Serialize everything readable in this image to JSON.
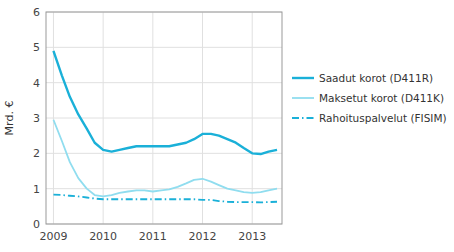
{
  "chart_data": {
    "type": "line",
    "ylabel": "Mrd. €",
    "x": [
      2009.0,
      2009.17,
      2009.33,
      2009.5,
      2009.67,
      2009.83,
      2010.0,
      2010.17,
      2010.33,
      2010.5,
      2010.67,
      2010.83,
      2011.0,
      2011.17,
      2011.33,
      2011.5,
      2011.67,
      2011.83,
      2012.0,
      2012.17,
      2012.33,
      2012.5,
      2012.67,
      2012.83,
      2013.0,
      2013.17,
      2013.33,
      2013.5
    ],
    "series": [
      {
        "name": "Saadut korot (D411R)",
        "color": "#1ab0d8",
        "line_style": "solid",
        "values": [
          4.9,
          4.2,
          3.6,
          3.1,
          2.7,
          2.3,
          2.1,
          2.05,
          2.1,
          2.15,
          2.2,
          2.2,
          2.2,
          2.2,
          2.2,
          2.25,
          2.3,
          2.4,
          2.55,
          2.55,
          2.5,
          2.4,
          2.3,
          2.15,
          2.0,
          1.98,
          2.05,
          2.1
        ]
      },
      {
        "name": "Maksetut korot (D411K)",
        "color": "#90ddef",
        "line_style": "solid",
        "values": [
          2.95,
          2.35,
          1.75,
          1.3,
          1.0,
          0.82,
          0.78,
          0.82,
          0.88,
          0.92,
          0.95,
          0.95,
          0.92,
          0.95,
          0.98,
          1.05,
          1.15,
          1.25,
          1.28,
          1.2,
          1.1,
          1.0,
          0.95,
          0.9,
          0.88,
          0.9,
          0.95,
          1.0
        ]
      },
      {
        "name": "Rahoituspalvelut (FISIM)",
        "color": "#1ab0d8",
        "line_style": "dashdot",
        "values": [
          0.83,
          0.82,
          0.8,
          0.78,
          0.75,
          0.72,
          0.7,
          0.7,
          0.7,
          0.7,
          0.7,
          0.7,
          0.7,
          0.7,
          0.7,
          0.7,
          0.7,
          0.7,
          0.68,
          0.68,
          0.65,
          0.63,
          0.62,
          0.62,
          0.62,
          0.61,
          0.62,
          0.63
        ]
      }
    ],
    "xlim": [
      2008.85,
      2013.6
    ],
    "ylim": [
      0,
      6
    ],
    "xticks": [
      2009,
      2010,
      2011,
      2012,
      2013
    ],
    "yticks": [
      0,
      1,
      2,
      3,
      4,
      5,
      6
    ],
    "grid": true,
    "legend": "right"
  }
}
